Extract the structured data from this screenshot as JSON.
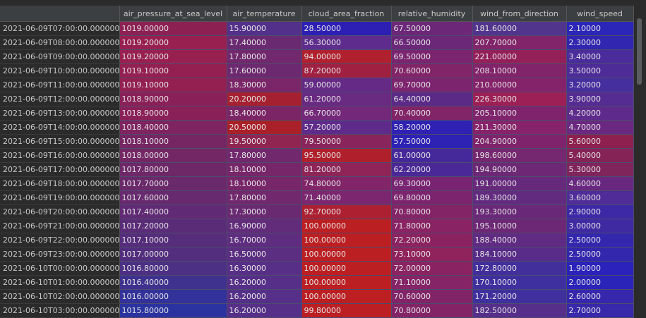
{
  "columns": [
    "",
    "air_pressure_at_sea_level",
    "air_temperature",
    "cloud_area_fraction",
    "relative_humidity",
    "wind_from_direction",
    "wind_speed"
  ],
  "rows": [
    {
      "index": "2021-06-09T07:00:00.000000000",
      "cells": [
        "1019.00000",
        "15.90000",
        "28.50000",
        "67.50000",
        "181.60000",
        "2.10000"
      ],
      "colors": [
        "#8c2053",
        "#53308a",
        "#2d1fb4",
        "#6c2778",
        "#51358d",
        "#2b25b8"
      ]
    },
    {
      "index": "2021-06-09T08:00:00.000000000",
      "cells": [
        "1019.20000",
        "17.40000",
        "56.30000",
        "66.50000",
        "207.70000",
        "2.30000"
      ],
      "colors": [
        "#982050",
        "#6a2a72",
        "#5d2c8d",
        "#6b2778",
        "#81246a",
        "#3126b0"
      ]
    },
    {
      "index": "2021-06-09T09:00:00.000000000",
      "cells": [
        "1019.20000",
        "17.80000",
        "94.00000",
        "69.50000",
        "221.00000",
        "3.40000"
      ],
      "colors": [
        "#982050",
        "#71286d",
        "#b0202e",
        "#7b2570",
        "#94205a",
        "#4a2c9a"
      ]
    },
    {
      "index": "2021-06-09T10:00:00.000000000",
      "cells": [
        "1019.10000",
        "17.60000",
        "87.20000",
        "70.60000",
        "208.10000",
        "3.50000"
      ],
      "colors": [
        "#932051",
        "#6d296f",
        "#9f2040",
        "#822468",
        "#82246a",
        "#4d2c98"
      ]
    },
    {
      "index": "2021-06-09T11:00:00.000000000",
      "cells": [
        "1019.10000",
        "18.30000",
        "59.00000",
        "69.70000",
        "210.00000",
        "3.20000"
      ],
      "colors": [
        "#932051",
        "#7a2668",
        "#642a86",
        "#7d246e",
        "#85236a",
        "#452e9e"
      ]
    },
    {
      "index": "2021-06-09T12:00:00.000000000",
      "cells": [
        "1018.90000",
        "20.20000",
        "61.20000",
        "64.40000",
        "226.30000",
        "3.90000"
      ],
      "colors": [
        "#8a2058",
        "#a52030",
        "#692a82",
        "#5a2a86",
        "#9c2055",
        "#552c92"
      ]
    },
    {
      "index": "2021-06-09T13:00:00.000000000",
      "cells": [
        "1018.90000",
        "18.40000",
        "66.70000",
        "70.40000",
        "205.10000",
        "4.20000"
      ],
      "colors": [
        "#8a2058",
        "#7c2566",
        "#73287a",
        "#812468",
        "#7f246c",
        "#5e2b8c"
      ]
    },
    {
      "index": "2021-06-09T14:00:00.000000000",
      "cells": [
        "1018.40000",
        "20.50000",
        "57.20000",
        "58.20000",
        "211.30000",
        "4.70000"
      ],
      "colors": [
        "#7e2460",
        "#aa2028",
        "#5f2b8b",
        "#2f22b2",
        "#87236a",
        "#6b2880"
      ]
    },
    {
      "index": "2021-06-09T15:00:00.000000000",
      "cells": [
        "1018.10000",
        "19.50000",
        "79.50000",
        "57.50000",
        "204.90000",
        "5.60000"
      ],
      "colors": [
        "#752663",
        "#912552",
        "#8a245c",
        "#2d22b4",
        "#7f246c",
        "#8d204e"
      ]
    },
    {
      "index": "2021-06-09T16:00:00.000000000",
      "cells": [
        "1018.00000",
        "17.80000",
        "95.50000",
        "61.00000",
        "198.60000",
        "5.40000"
      ],
      "colors": [
        "#742765",
        "#71286d",
        "#b0202c",
        "#45289a",
        "#75276f",
        "#852356"
      ]
    },
    {
      "index": "2021-06-09T17:00:00.000000000",
      "cells": [
        "1017.80000",
        "18.10000",
        "81.20000",
        "62.20000",
        "194.90000",
        "5.30000"
      ],
      "colors": [
        "#6e2868",
        "#772669",
        "#8e2457",
        "#4a2896",
        "#6d2875",
        "#80245c"
      ]
    },
    {
      "index": "2021-06-09T18:00:00.000000000",
      "cells": [
        "1017.70000",
        "18.10000",
        "74.80000",
        "69.30000",
        "191.00000",
        "4.60000"
      ],
      "colors": [
        "#6a296b",
        "#772669",
        "#812568",
        "#782472",
        "#66297c",
        "#682880"
      ]
    },
    {
      "index": "2021-06-09T19:00:00.000000000",
      "cells": [
        "1017.60000",
        "17.80000",
        "71.40000",
        "69.80000",
        "189.30000",
        "3.60000"
      ],
      "colors": [
        "#672a6e",
        "#71286d",
        "#7b266f",
        "#7d246e",
        "#622b80",
        "#4f2c98"
      ]
    },
    {
      "index": "2021-06-09T20:00:00.000000000",
      "cells": [
        "1017.40000",
        "17.30000",
        "92.70000",
        "70.80000",
        "193.30000",
        "2.90000"
      ],
      "colors": [
        "#602b74",
        "#692a72",
        "#ad2032",
        "#832467",
        "#6a2978",
        "#3d28a6"
      ]
    },
    {
      "index": "2021-06-09T21:00:00.000000000",
      "cells": [
        "1017.20000",
        "16.90000",
        "100.00000",
        "71.80000",
        "195.10000",
        "3.00000"
      ],
      "colors": [
        "#5a2c78",
        "#622c7b",
        "#bc1f22",
        "#892363",
        "#6d2875",
        "#402aa2"
      ]
    },
    {
      "index": "2021-06-09T22:00:00.000000000",
      "cells": [
        "1017.10000",
        "16.70000",
        "100.00000",
        "72.20000",
        "188.40000",
        "2.50000"
      ],
      "colors": [
        "#562d7b",
        "#5e2d7f",
        "#bc1f22",
        "#8b2360",
        "#602b82",
        "#3327ae"
      ]
    },
    {
      "index": "2021-06-09T23:00:00.000000000",
      "cells": [
        "1017.00000",
        "16.50000",
        "100.00000",
        "73.10000",
        "184.10000",
        "2.50000"
      ],
      "colors": [
        "#532e7e",
        "#5b2e82",
        "#bc1f22",
        "#90225c",
        "#582c88",
        "#3327ae"
      ]
    },
    {
      "index": "2021-06-10T00:00:00.000000000",
      "cells": [
        "1016.80000",
        "16.30000",
        "100.00000",
        "72.00000",
        "172.80000",
        "1.90000"
      ],
      "colors": [
        "#4c3084",
        "#582f86",
        "#bc1f22",
        "#8a2362",
        "#432f9c",
        "#2a22ba"
      ]
    },
    {
      "index": "2021-06-10T01:00:00.000000000",
      "cells": [
        "1016.40000",
        "16.20000",
        "100.00000",
        "71.10000",
        "170.10000",
        "2.00000"
      ],
      "colors": [
        "#3f318e",
        "#552f88",
        "#bc1f22",
        "#852466",
        "#3e309f",
        "#2b24b8"
      ]
    },
    {
      "index": "2021-06-10T02:00:00.000000000",
      "cells": [
        "1016.00000",
        "16.20000",
        "100.00000",
        "70.60000",
        "171.20000",
        "2.60000"
      ],
      "colors": [
        "#32329a",
        "#552f88",
        "#bc1f22",
        "#822468",
        "#40309e",
        "#3627ac"
      ]
    },
    {
      "index": "2021-06-10T03:00:00.000000000",
      "cells": [
        "1015.80000",
        "16.20000",
        "99.80000",
        "70.80000",
        "182.50000",
        "2.70000"
      ],
      "colors": [
        "#2b33a0",
        "#552f88",
        "#bb1f23",
        "#832467",
        "#552f8a",
        "#3828aa"
      ]
    }
  ]
}
